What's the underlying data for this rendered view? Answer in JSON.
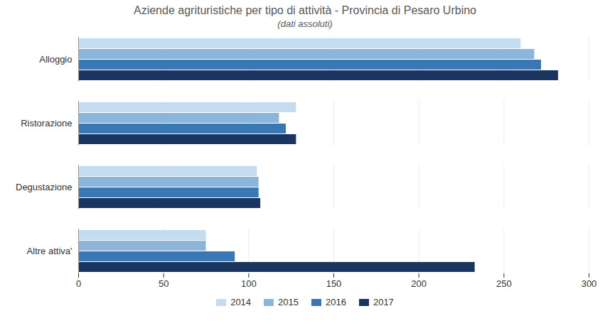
{
  "chart_data": {
    "type": "bar",
    "orientation": "horizontal",
    "title": "Aziende agrituristiche per tipo di attività - Provincia di Pesaro Urbino",
    "subtitle": "(dati assoluti)",
    "categories": [
      "Alloggio",
      "Ristorazione",
      "Degustazione",
      "Altre attiva'"
    ],
    "series": [
      {
        "name": "2014",
        "color": "#C5DCF0",
        "values": [
          260,
          128,
          105,
          75
        ]
      },
      {
        "name": "2015",
        "color": "#8DB4D9",
        "values": [
          268,
          118,
          106,
          75
        ]
      },
      {
        "name": "2016",
        "color": "#3A78B5",
        "values": [
          272,
          122,
          106,
          92
        ]
      },
      {
        "name": "2017",
        "color": "#1A3660",
        "values": [
          282,
          128,
          107,
          233
        ]
      }
    ],
    "xlim": [
      0,
      300
    ],
    "xticks": [
      0,
      50,
      100,
      150,
      200,
      250,
      300
    ],
    "grid": true,
    "legend": "bottom"
  }
}
